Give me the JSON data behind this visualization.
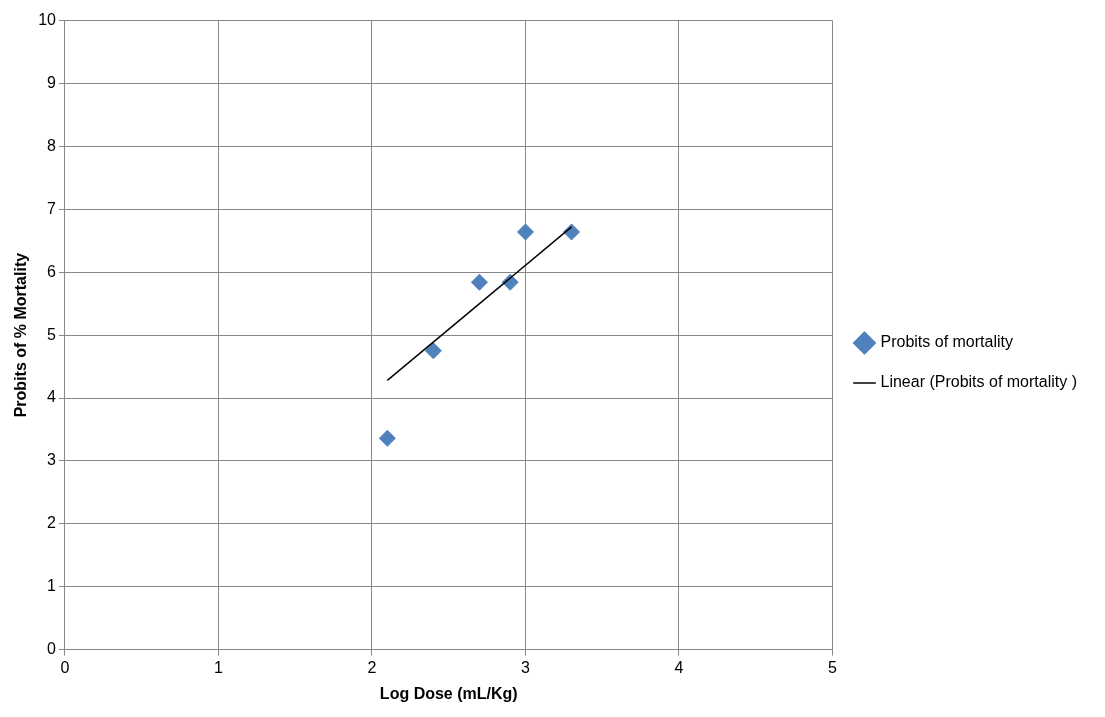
{
  "chart_data": {
    "type": "scatter",
    "xlabel": "Log Dose (mL/Kg)",
    "ylabel": "Probits of % Mortality",
    "series": [
      {
        "name": "Probits of mortality",
        "type": "scatter",
        "color": "#4f81bd",
        "marker": "diamond",
        "x": [
          2.1,
          2.4,
          2.7,
          2.9,
          3.0,
          3.3
        ],
        "values": [
          3.36,
          4.75,
          5.84,
          5.84,
          6.64,
          6.64
        ]
      },
      {
        "name": "Linear (Probits of mortality )",
        "type": "line",
        "color": "#000000",
        "marker": "none",
        "line_style": "solid",
        "x": [
          2.1,
          3.3
        ],
        "values": [
          4.28,
          6.72
        ]
      }
    ],
    "xlim": [
      0,
      5
    ],
    "xticks": [
      0,
      1,
      2,
      3,
      4,
      5
    ],
    "ylim": [
      0,
      10
    ],
    "yticks": [
      0,
      1,
      2,
      3,
      4,
      5,
      6,
      7,
      8,
      9,
      10
    ],
    "grid": true,
    "legend": "right"
  }
}
